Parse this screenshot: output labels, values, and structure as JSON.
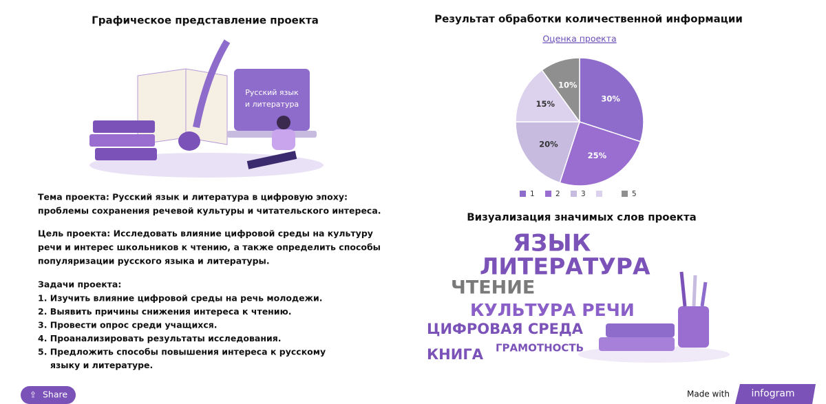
{
  "left": {
    "title": "Графическое представление проекта",
    "illustration_text": [
      "Русский язык",
      "и литература"
    ],
    "theme": [
      "Тема проекта: Русский язык и литература в цифровую эпоху:",
      "проблемы сохранения речевой культуры и читательского интереса."
    ],
    "goal": [
      "Цель проекта: Исследовать влияние цифровой среды на культуру",
      "речи и интерес школьников к чтению, а также определить способы",
      "популяризации русского языка и литературы."
    ],
    "tasks_title": "Задачи проекта:",
    "tasks": [
      "1. Изучить влияние цифровой среды на речь молодежи.",
      "2. Выявить причины снижения интереса к чтению.",
      "3. Провести опрос среди учащихся.",
      "4. Проанализировать результаты исследования.",
      "5. Предложить способы повышения интереса к русскому",
      "языку и литературе."
    ]
  },
  "chart_data": {
    "type": "pie",
    "title": "Результат обработки количественной информации",
    "subtitle": "Оценка проекта",
    "categories": [
      "1",
      "2",
      "3",
      null,
      "5"
    ],
    "values": [
      30,
      25,
      20,
      15,
      10
    ],
    "value_labels": [
      "30%",
      "25%",
      "20%",
      "15%",
      "10%"
    ],
    "colors": [
      "#8e6ccb",
      "#9a6dd0",
      "#c8bbe0",
      "#dcd2ee",
      "#8f8f8f"
    ]
  },
  "word_cloud": {
    "title": "Визуализация значимых слов проекта",
    "words": [
      "ЯЗЫК",
      "ЛИТЕРАТУРА",
      "ЧТЕНИЕ",
      "КУЛЬТУРА РЕЧИ",
      "ЦИФРОВАЯ СРЕДА",
      "КНИГА",
      "ГРАМОТНОСТЬ"
    ]
  },
  "footer": {
    "share": "Share",
    "made_with": "Made with",
    "brand": "infogram"
  }
}
